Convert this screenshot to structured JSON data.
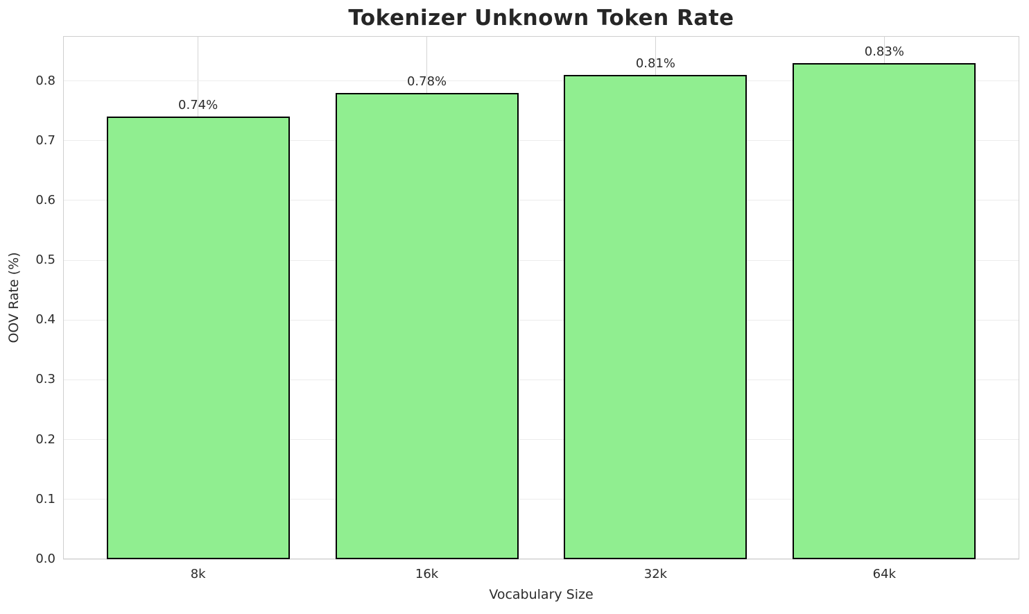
{
  "chart_data": {
    "type": "bar",
    "title": "Tokenizer Unknown Token Rate",
    "xlabel": "Vocabulary Size",
    "ylabel": "OOV Rate (%)",
    "categories": [
      "8k",
      "16k",
      "32k",
      "64k"
    ],
    "values": [
      0.74,
      0.78,
      0.81,
      0.83
    ],
    "bar_labels": [
      "0.74%",
      "0.78%",
      "0.81%",
      "0.83%"
    ],
    "ylim": [
      0,
      0.875
    ],
    "yticks": [
      0.0,
      0.1,
      0.2,
      0.3,
      0.4,
      0.5,
      0.6,
      0.7,
      0.8
    ],
    "ytick_labels": [
      "0.0",
      "0.1",
      "0.2",
      "0.3",
      "0.4",
      "0.5",
      "0.6",
      "0.7",
      "0.8"
    ],
    "grid": true,
    "legend_position": "none",
    "colors": {
      "bar_fill": "#90EE90",
      "bar_edge": "#000000",
      "grid_horizontal": "#ececec",
      "grid_vertical": "#d4d4d4",
      "spine": "#cfcfcf",
      "text": "#2b2b2b"
    }
  }
}
